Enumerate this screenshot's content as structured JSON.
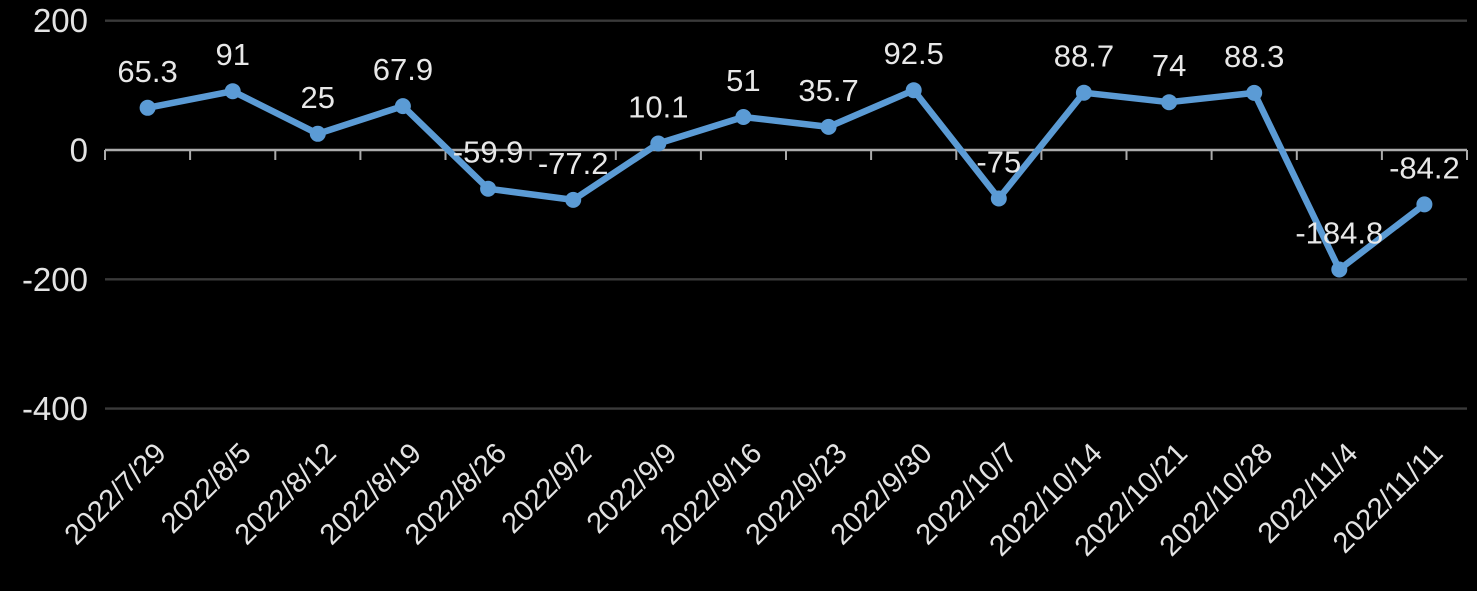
{
  "chart_data": {
    "type": "line",
    "title": "",
    "xlabel": "",
    "ylabel": "",
    "categories": [
      "2022/7/29",
      "2022/8/5",
      "2022/8/12",
      "2022/8/19",
      "2022/8/26",
      "2022/9/2",
      "2022/9/9",
      "2022/9/16",
      "2022/9/23",
      "2022/9/30",
      "2022/10/7",
      "2022/10/14",
      "2022/10/21",
      "2022/10/28",
      "2022/11/4",
      "2022/11/11"
    ],
    "series": [
      {
        "name": "",
        "values": [
          65.3,
          91,
          25,
          67.9,
          -59.9,
          -77.2,
          10.1,
          51,
          35.7,
          92.5,
          -75,
          88.7,
          74,
          88.3,
          -184.8,
          -84.2
        ],
        "labels": [
          "65.3",
          "91",
          "25",
          "67.9",
          "-59.9",
          "-77.2",
          "10.1",
          "51",
          "35.7",
          "92.5",
          "-75",
          "88.7",
          "74",
          "88.3",
          "-184.8",
          "-84.2"
        ]
      }
    ],
    "ylim": [
      -400,
      200
    ],
    "yticks": [
      200,
      0,
      -200,
      -400
    ],
    "ytick_labels": [
      "200",
      "0",
      "-200",
      "-400"
    ],
    "grid": true,
    "legend": false,
    "x_label_rotation_deg": 45,
    "data_label_position": "above",
    "colors": {
      "background": "#000000",
      "line": "#5B9BD5",
      "marker": "#5B9BD5",
      "gridline": "#3A3A3A",
      "axis_line": "#ABABAB",
      "tick": "#ABABAB",
      "data_label_text": "#E8E8E8",
      "axis_text": "#E3E3E3"
    }
  }
}
